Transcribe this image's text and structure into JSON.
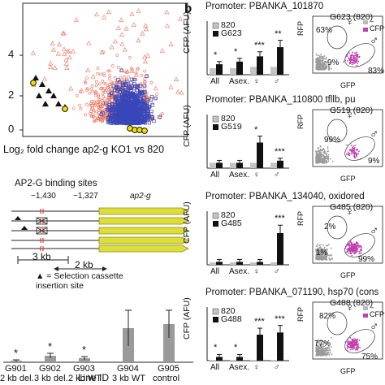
{
  "panel_b_label": "b",
  "volcano": {
    "yticks": [
      "4",
      "2",
      "0"
    ],
    "xlabel": "Log₂ fold change ap2-g KO1 vs 820"
  },
  "schematic": {
    "title": "AP2-G binding sites",
    "coord_left": "−1,430",
    "coord_right": "−1,327",
    "gene_label": "ap2-g",
    "scale_3kb": "3 kb",
    "scale_2kb": "2 kb",
    "legend_text": "▲ = Selection cassette insertion site"
  },
  "line_bar": {
    "categories": [
      "G901",
      "G902",
      "G903",
      "G904",
      "G905"
    ],
    "subtitles": [
      "2 kb del.",
      "3 kb del.",
      "2 kb WT",
      "3 kb WT",
      "control"
    ],
    "values": [
      0.02,
      0.08,
      0.05,
      0.42,
      0.47
    ],
    "errors": [
      0.01,
      0.03,
      0.02,
      0.22,
      0.17
    ],
    "stars": [
      "*",
      "*",
      "*",
      "",
      ""
    ],
    "xlabel": "Line ID"
  },
  "rows": [
    {
      "promoter": "Promoter: PBANKA_101870",
      "line": "G623",
      "facs_title": "G623 (820)",
      "legend": [
        "820",
        "G623"
      ],
      "stars": [
        "*",
        "*",
        "***",
        "**"
      ],
      "pcts": [
        "63%",
        "9%",
        "83%"
      ]
    },
    {
      "promoter": "Promoter: PBANKA_110800 tfllb, pu",
      "line": "G519",
      "facs_title": "G519 (820)",
      "legend": [
        "820",
        "G519"
      ],
      "stars": [
        "",
        "",
        "*",
        "***"
      ],
      "pcts": [
        "99%",
        "9%"
      ]
    },
    {
      "promoter": "Promoter: PBANKA_134040, oxidored",
      "line": "G485",
      "facs_title": "G485 (820)",
      "legend": [
        "820",
        "G485"
      ],
      "stars": [
        "",
        "",
        "",
        "***"
      ],
      "pcts": [
        "2%",
        "1%",
        "99%"
      ]
    },
    {
      "promoter": "Promoter: PBANKA_071190, hsp70 (cons",
      "line": "G488",
      "facs_title": "G488 (820)",
      "legend": [
        "820",
        "G488"
      ],
      "stars": [
        "*",
        "*",
        "***",
        "***"
      ],
      "pcts": [
        "82%",
        "77%",
        "75%"
      ]
    }
  ],
  "cfp_axis_label": "CFP (AFU)",
  "stage_labels": [
    "All",
    "Asex.",
    "♀",
    "♂"
  ],
  "facs_axes": {
    "x": "GFP",
    "y": "RFP"
  },
  "facs_legend": [
    "–",
    "CFP⁺"
  ],
  "chart_data": [
    {
      "type": "bar",
      "title": "",
      "categories": [
        "G901",
        "G902",
        "G903",
        "G904",
        "G905"
      ],
      "values": [
        0.02,
        0.08,
        0.05,
        0.42,
        0.47
      ],
      "xlabel": "Line ID",
      "ylabel": ""
    },
    {
      "type": "bar",
      "title": "Promoter: PBANKA_101870",
      "categories": [
        "All",
        "Asex.",
        "♀",
        "♂"
      ],
      "ylabel": "CFP (AFU)",
      "series": [
        {
          "name": "820",
          "values": [
            0.5,
            0.5,
            0.6,
            0.6
          ]
        },
        {
          "name": "G623",
          "values": [
            0.8,
            1.0,
            1.4,
            2.1
          ]
        }
      ]
    },
    {
      "type": "bar",
      "title": "Promoter: PBANKA_110800 tfllb, pu",
      "categories": [
        "All",
        "Asex.",
        "♀",
        "♂"
      ],
      "ylabel": "CFP (AFU)",
      "series": [
        {
          "name": "820",
          "values": [
            0.5,
            0.5,
            0.5,
            0.5
          ]
        },
        {
          "name": "G519",
          "values": [
            0.5,
            0.5,
            2.4,
            0.7
          ]
        }
      ]
    },
    {
      "type": "bar",
      "title": "Promoter: PBANKA_134040, oxidored",
      "categories": [
        "All",
        "Asex.",
        "♀",
        "♂"
      ],
      "ylabel": "CFP (AFU)",
      "series": [
        {
          "name": "820",
          "values": [
            0.5,
            0.5,
            0.5,
            0.5
          ]
        },
        {
          "name": "G485",
          "values": [
            0.6,
            0.6,
            0.6,
            6.5
          ]
        }
      ]
    },
    {
      "type": "bar",
      "title": "Promoter: PBANKA_071190, hsp70 (cons",
      "categories": [
        "All",
        "Asex.",
        "♀",
        "♂"
      ],
      "ylabel": "CFP (AFU)",
      "series": [
        {
          "name": "820",
          "values": [
            0.5,
            0.5,
            0.5,
            0.5
          ]
        },
        {
          "name": "G488",
          "values": [
            5,
            5,
            35,
            38
          ]
        }
      ]
    }
  ]
}
